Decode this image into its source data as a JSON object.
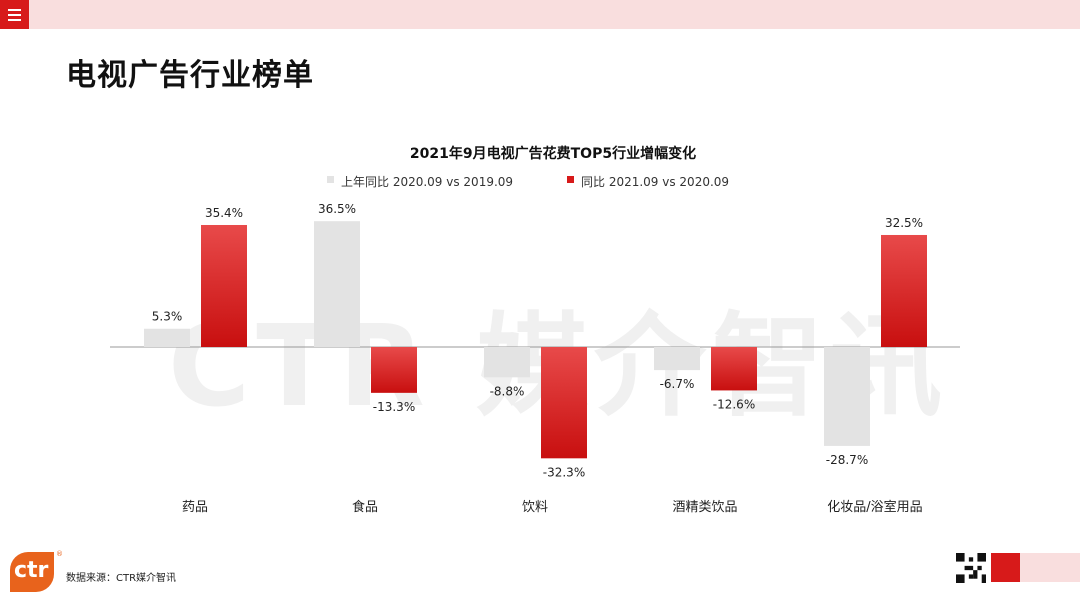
{
  "page_title": "电视广告行业榜单",
  "watermark": "CTR 媒介智讯",
  "logo": "ctr",
  "logo_mark": "®",
  "source": "数据来源：CTR媒介智讯",
  "icons": {
    "menu": "hamburger-menu-icon",
    "qr": "qr-code-icon"
  },
  "colors": {
    "accent": "#d71a1a",
    "topbar": "#f9dede",
    "prev_bar": "#e3e3e3",
    "logo": "#e8631c"
  },
  "chart_data": {
    "type": "bar",
    "title": "2021年9月电视广告花费TOP5行业增幅变化",
    "xlabel": "",
    "ylabel": "",
    "ylim": [
      -35,
      40
    ],
    "legend_position": "top",
    "grid": false,
    "categories": [
      "药品",
      "食品",
      "饮料",
      "酒精类饮品",
      "化妆品/浴室用品"
    ],
    "series": [
      {
        "name": "上年同比 2020.09 vs 2019.09",
        "color": "#e3e3e3",
        "values": [
          5.3,
          36.5,
          -8.8,
          -6.7,
          -28.7
        ],
        "labels": [
          "5.3%",
          "36.5%",
          "-8.8%",
          "-6.7%",
          "-28.7%"
        ]
      },
      {
        "name": "同比 2021.09 vs 2020.09",
        "color": "#d71a1a",
        "values": [
          35.4,
          -13.3,
          -32.3,
          -12.6,
          32.5
        ],
        "labels": [
          "35.4%",
          "-13.3%",
          "-32.3%",
          "-12.6%",
          "32.5%"
        ]
      }
    ]
  }
}
